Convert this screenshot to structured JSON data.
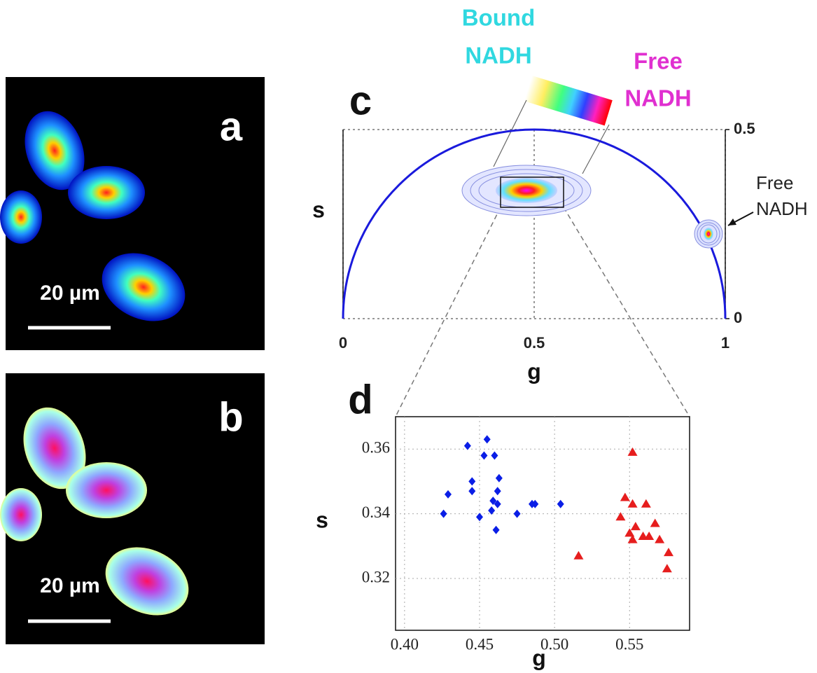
{
  "images": [
    {
      "label": "a",
      "scale": "20 µm"
    },
    {
      "label": "b",
      "scale": "20 µm"
    }
  ],
  "chart_data": [
    {
      "type": "phasor",
      "label": "c",
      "x_label": "g",
      "y_label": "s",
      "xlim": [
        0,
        1
      ],
      "ylim": [
        0,
        0.5
      ],
      "xticks": [
        0,
        0.5,
        1
      ],
      "yticks": [
        0,
        0.5
      ],
      "grid": true,
      "color": "#1a1adc",
      "bound_label": [
        "Bound",
        "NADH"
      ],
      "free_label": [
        "Free",
        "NADH"
      ],
      "annotation": [
        "Free",
        "NADH"
      ]
    },
    {
      "type": "scatter",
      "label": "d",
      "x_label": "g",
      "y_label": "s",
      "xlim": [
        0.394,
        0.59
      ],
      "ylim": [
        0.304,
        0.37
      ],
      "xticks": [
        {
          "value": 0.4,
          "label": "0.40"
        },
        0.45,
        {
          "value": 0.5,
          "label": "0.50"
        },
        0.55
      ],
      "yticks": [
        0.32,
        0.34,
        0.36
      ],
      "grid": true,
      "series": [
        {
          "color": "#0a1ee6",
          "marker": "diamond",
          "x": [
            0.426,
            0.429,
            0.442,
            0.455,
            0.453,
            0.46,
            0.445,
            0.445,
            0.463,
            0.462,
            0.459,
            0.462,
            0.458,
            0.45,
            0.461,
            0.475,
            0.485,
            0.487,
            0.504
          ],
          "values": [
            0.34,
            0.346,
            0.361,
            0.363,
            0.358,
            0.358,
            0.35,
            0.347,
            0.351,
            0.347,
            0.344,
            0.343,
            0.341,
            0.339,
            0.335,
            0.34,
            0.343,
            0.343,
            0.343
          ]
        },
        {
          "color": "#e61e1e",
          "marker": "triangle",
          "x": [
            0.552,
            0.547,
            0.552,
            0.561,
            0.544,
            0.554,
            0.567,
            0.552,
            0.559,
            0.563,
            0.57,
            0.576,
            0.575,
            0.516,
            0.55
          ],
          "values": [
            0.359,
            0.345,
            0.343,
            0.343,
            0.339,
            0.336,
            0.337,
            0.332,
            0.333,
            0.333,
            0.332,
            0.328,
            0.323,
            0.327,
            0.334
          ]
        }
      ]
    }
  ]
}
